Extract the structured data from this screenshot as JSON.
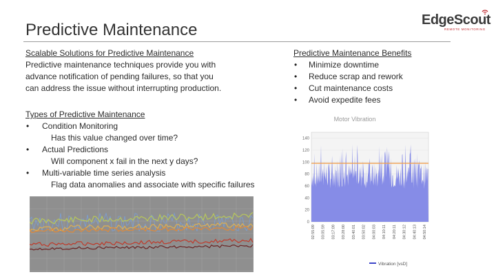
{
  "slide": {
    "title": "Predictive Maintenance",
    "logo": {
      "name": "EdgeScout",
      "tagline": "REMOTE MONITORING"
    }
  },
  "left": {
    "heading": "Scalable Solutions for Predictive Maintenance",
    "body": [
      "Predictive maintenance techniques provide you with",
      "advance notification of pending failures, so that you",
      "can address the issue without interrupting production."
    ],
    "types_heading": "Types of Predictive Maintenance",
    "types": [
      {
        "label": "Condition Monitoring",
        "desc": "Has this value changed over time?"
      },
      {
        "label": "Actual Predictions",
        "desc": "Will component x fail in the next y days?"
      },
      {
        "label": "Multi-variable time series analysis",
        "desc": "Flag data anomalies and associate with specific failures"
      }
    ]
  },
  "right": {
    "heading": "Predictive Maintenance Benefits",
    "benefits": [
      "Minimize downtime",
      "Reduce scrap and rework",
      "Cut maintenance costs",
      "Avoid expedite fees"
    ]
  },
  "bullet_glyph": "•",
  "colors": {
    "accent_red": "#c0272d",
    "vibration_fill": "#7f86e6",
    "threshold": "#f0a050",
    "panel_bg": "#8f8f8f"
  },
  "chart_data": {
    "type": "area",
    "title": "Motor Vibration",
    "ylabel": "",
    "yticks": [
      "0",
      "20",
      "40",
      "60",
      "80",
      "100",
      "120",
      "140"
    ],
    "ylim": [
      0,
      150
    ],
    "x_ticks": [
      "02:55:09",
      "03:05:59",
      "03:17:09",
      "03:28:00",
      "03:40:01",
      "03:50:02",
      "04:00:03",
      "04:10:11",
      "04:20:11",
      "04:30:12",
      "04:40:13",
      "04:50:14"
    ],
    "threshold": 98,
    "legend": "Vibration [vsD]",
    "legend_position": "bottom"
  }
}
